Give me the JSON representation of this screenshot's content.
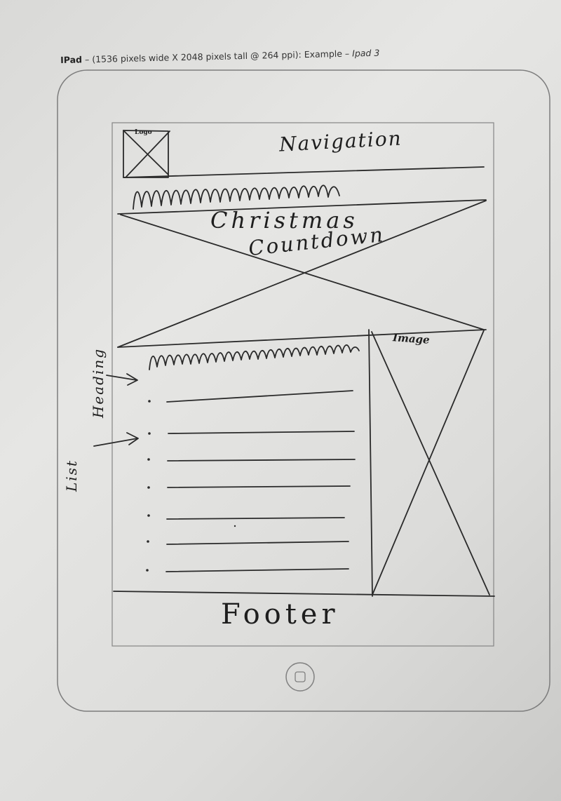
{
  "header": {
    "device": "IPad",
    "spec": " – (1536 pixels wide X 2048 pixels tall @ 264 ppi): Example – ",
    "example_device": "Ipad 3"
  },
  "wireframe": {
    "logo_label": "Logo",
    "navigation_label": "Navigation",
    "hero": {
      "line1": "Christmas",
      "line2": "Countdown"
    },
    "image_label": "Image",
    "footer_label": "Footer"
  },
  "annotations": {
    "heading": "Heading",
    "list": "List"
  },
  "colors": {
    "paper": "#e3e3e1",
    "pencil": "#2a2a2a",
    "printed_outline": "#7d7d7d"
  }
}
